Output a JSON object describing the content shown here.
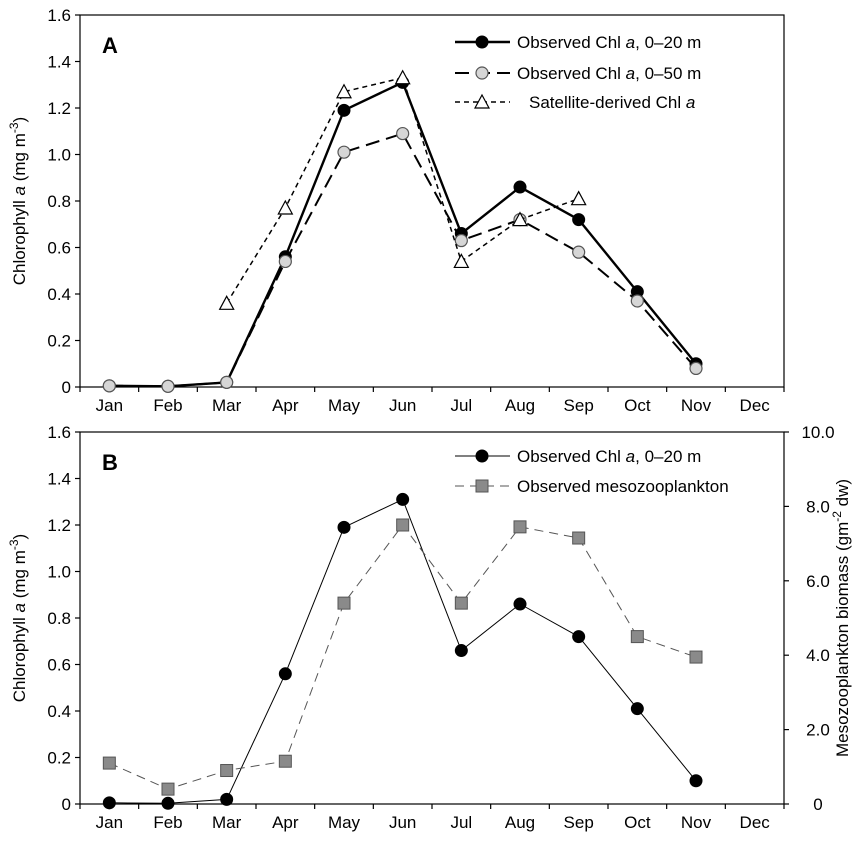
{
  "chart_data": [
    {
      "type": "line",
      "panel_label": "A",
      "categories": [
        "Jan",
        "Feb",
        "Mar",
        "Apr",
        "May",
        "Jun",
        "Jul",
        "Aug",
        "Sep",
        "Oct",
        "Nov",
        "Dec"
      ],
      "ylabel": "Chlorophyll a (mg m-3)",
      "ylim": [
        0,
        1.6
      ],
      "yticks": [
        "0",
        "0.2",
        "0.4",
        "0.6",
        "0.8",
        "1.0",
        "1.2",
        "1.4",
        "1.6"
      ],
      "grid": false,
      "legend_position": "top-right",
      "series": [
        {
          "name": "Observed Chl a, 0–20 m",
          "marker": "filled-circle",
          "line": "solid",
          "color": "#000000",
          "values": [
            0.005,
            0.003,
            0.02,
            0.56,
            1.19,
            1.31,
            0.66,
            0.86,
            0.72,
            0.41,
            0.1,
            null
          ]
        },
        {
          "name": "Observed Chl a, 0–50 m",
          "marker": "open-circle-gray",
          "line": "long-dash",
          "color": "#000000",
          "values": [
            0.005,
            0.003,
            0.02,
            0.54,
            1.01,
            1.09,
            0.63,
            0.72,
            0.58,
            0.37,
            0.08,
            null
          ]
        },
        {
          "name": "Satellite-derived Chl a",
          "marker": "open-triangle",
          "line": "short-dash",
          "color": "#000000",
          "values": [
            null,
            null,
            0.36,
            0.77,
            1.27,
            1.33,
            0.54,
            0.72,
            0.81,
            null,
            null,
            null
          ]
        }
      ]
    },
    {
      "type": "line",
      "panel_label": "B",
      "categories": [
        "Jan",
        "Feb",
        "Mar",
        "Apr",
        "May",
        "Jun",
        "Jul",
        "Aug",
        "Sep",
        "Oct",
        "Nov",
        "Dec"
      ],
      "ylabel": "Chlorophyll a (mg m-3)",
      "ylim": [
        0,
        1.6
      ],
      "yticks": [
        "0",
        "0.2",
        "0.4",
        "0.6",
        "0.8",
        "1.0",
        "1.2",
        "1.4",
        "1.6"
      ],
      "y2label": "Mesozooplankton biomass (gm-2 dw)",
      "y2lim": [
        0,
        10.0
      ],
      "y2ticks": [
        "0",
        "2.0",
        "4.0",
        "6.0",
        "8.0",
        "10.0"
      ],
      "grid": false,
      "legend_position": "top-right",
      "series": [
        {
          "name": "Observed Chl a, 0–20 m",
          "marker": "filled-circle",
          "line": "thin-solid",
          "axis": "left",
          "color": "#000000",
          "values": [
            0.005,
            0.003,
            0.02,
            0.56,
            1.19,
            1.31,
            0.66,
            0.86,
            0.72,
            0.41,
            0.1,
            null
          ]
        },
        {
          "name": "Observed mesozooplankton",
          "marker": "gray-square",
          "line": "dash",
          "axis": "right",
          "color": "#808080",
          "values": [
            1.1,
            0.4,
            0.9,
            1.15,
            5.4,
            7.5,
            5.4,
            7.45,
            7.15,
            4.5,
            3.95,
            null
          ]
        }
      ]
    }
  ]
}
